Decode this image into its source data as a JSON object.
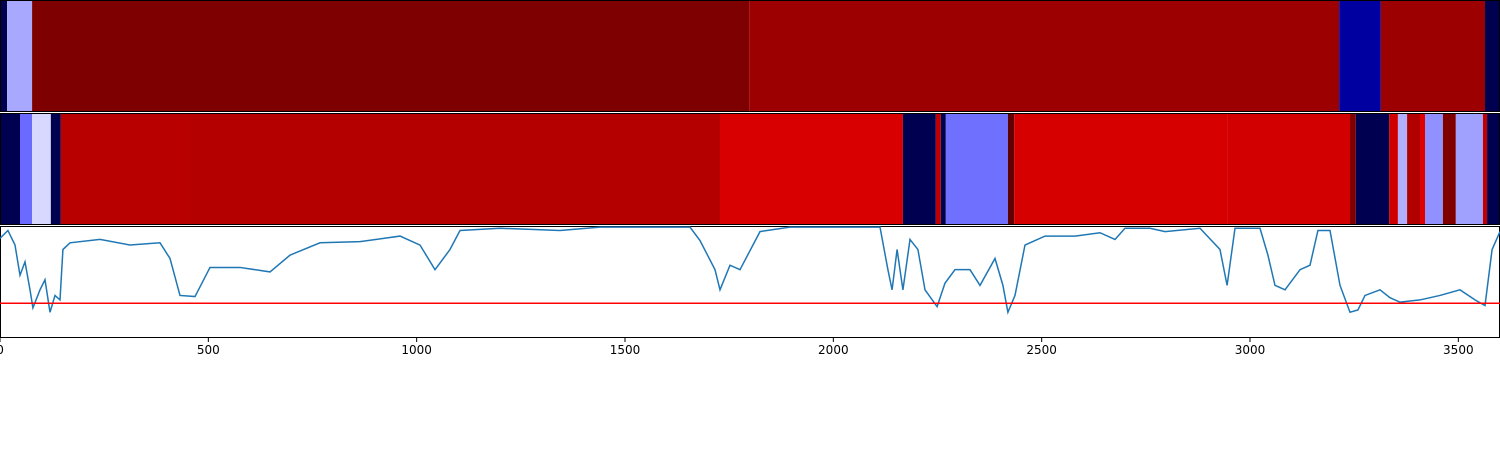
{
  "chart_data": [
    {
      "type": "strip",
      "xlim": [
        0,
        3600
      ],
      "edges": [
        0,
        17,
        77,
        1798,
        3214,
        3314,
        3564,
        3600
      ],
      "colors": [
        "#000050",
        "#a8a8ff",
        "#7f0000",
        "#9c0000",
        "#0000a0",
        "#9c0000",
        "#000050"
      ]
    },
    {
      "type": "strip",
      "xlim": [
        0,
        3600
      ],
      "edges": [
        0,
        48,
        77,
        122,
        146,
        456,
        1728,
        2167,
        2246,
        2258,
        2270,
        2419,
        2434,
        2947,
        3240,
        3254,
        3334,
        3355,
        3377,
        3408,
        3420,
        3463,
        3494,
        3559,
        3569,
        3600
      ],
      "colors": [
        "#000050",
        "#6a6aff",
        "#d8d8ff",
        "#000050",
        "#b90000",
        "#b50000",
        "#d80000",
        "#000050",
        "#c00000",
        "#000050",
        "#7070ff",
        "#600000",
        "#d60000",
        "#d20000",
        "#800000",
        "#000050",
        "#d00000",
        "#b0b0ff",
        "#b00000",
        "#e00000",
        "#9090ff",
        "#800000",
        "#a0a0ff",
        "#c00000",
        "#000050"
      ]
    },
    {
      "type": "line",
      "xlim": [
        0,
        3600
      ],
      "ylim": [
        0,
        1
      ],
      "xticks": [
        0,
        500,
        1000,
        1500,
        2000,
        2500,
        3000,
        3500
      ],
      "color": "#1f77b4",
      "threshold": 0.31,
      "threshold_color": "#ff0000",
      "x": [
        0,
        19,
        36,
        48,
        60,
        72,
        79,
        96,
        108,
        120,
        132,
        144,
        151,
        168,
        240,
        312,
        384,
        408,
        432,
        468,
        504,
        576,
        648,
        696,
        768,
        864,
        960,
        1008,
        1044,
        1080,
        1104,
        1200,
        1344,
        1440,
        1656,
        1680,
        1716,
        1728,
        1752,
        1776,
        1824,
        1896,
        2112,
        2131,
        2141,
        2153,
        2167,
        2184,
        2203,
        2220,
        2249,
        2268,
        2292,
        2328,
        2352,
        2388,
        2407,
        2419,
        2436,
        2460,
        2508,
        2580,
        2640,
        2676,
        2700,
        2760,
        2796,
        2880,
        2928,
        2945,
        2964,
        3024,
        3043,
        3060,
        3084,
        3120,
        3144,
        3163,
        3192,
        3216,
        3240,
        3259,
        3276,
        3312,
        3336,
        3360,
        3408,
        3456,
        3504,
        3540,
        3564,
        3581,
        3600
      ],
      "values": [
        0.89,
        0.96,
        0.83,
        0.56,
        0.68,
        0.43,
        0.27,
        0.43,
        0.52,
        0.23,
        0.38,
        0.34,
        0.79,
        0.85,
        0.88,
        0.83,
        0.85,
        0.71,
        0.38,
        0.37,
        0.63,
        0.63,
        0.59,
        0.74,
        0.85,
        0.86,
        0.91,
        0.83,
        0.61,
        0.79,
        0.96,
        0.98,
        0.96,
        0.99,
        0.99,
        0.87,
        0.61,
        0.43,
        0.65,
        0.61,
        0.95,
        0.99,
        0.99,
        0.61,
        0.43,
        0.79,
        0.43,
        0.88,
        0.79,
        0.43,
        0.28,
        0.49,
        0.61,
        0.61,
        0.47,
        0.71,
        0.47,
        0.23,
        0.38,
        0.83,
        0.91,
        0.91,
        0.94,
        0.88,
        0.98,
        0.98,
        0.95,
        0.98,
        0.79,
        0.47,
        0.98,
        0.98,
        0.74,
        0.47,
        0.43,
        0.61,
        0.65,
        0.96,
        0.96,
        0.47,
        0.23,
        0.25,
        0.38,
        0.43,
        0.36,
        0.32,
        0.34,
        0.38,
        0.43,
        0.34,
        0.29,
        0.79,
        0.95
      ]
    }
  ]
}
